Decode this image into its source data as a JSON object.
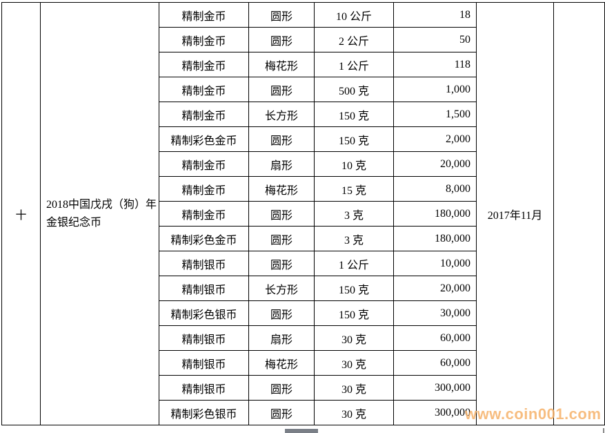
{
  "group": {
    "index": "十",
    "name": "2018中国戊戌（狗）年金银纪念币",
    "issue_date": "2017年11月",
    "rows": [
      {
        "type": "精制金币",
        "shape": "圆形",
        "weight": "10 公斤",
        "mintage": "18"
      },
      {
        "type": "精制金币",
        "shape": "圆形",
        "weight": "2 公斤",
        "mintage": "50"
      },
      {
        "type": "精制金币",
        "shape": "梅花形",
        "weight": "1 公斤",
        "mintage": "118"
      },
      {
        "type": "精制金币",
        "shape": "圆形",
        "weight": "500 克",
        "mintage": "1,000"
      },
      {
        "type": "精制金币",
        "shape": "长方形",
        "weight": "150 克",
        "mintage": "1,500"
      },
      {
        "type": "精制彩色金币",
        "shape": "圆形",
        "weight": "150 克",
        "mintage": "2,000"
      },
      {
        "type": "精制金币",
        "shape": "扇形",
        "weight": "10 克",
        "mintage": "20,000"
      },
      {
        "type": "精制金币",
        "shape": "梅花形",
        "weight": "15 克",
        "mintage": "8,000"
      },
      {
        "type": "精制金币",
        "shape": "圆形",
        "weight": "3 克",
        "mintage": "180,000"
      },
      {
        "type": "精制彩色金币",
        "shape": "圆形",
        "weight": "3 克",
        "mintage": "180,000"
      },
      {
        "type": "精制银币",
        "shape": "圆形",
        "weight": "1 公斤",
        "mintage": "10,000"
      },
      {
        "type": "精制银币",
        "shape": "长方形",
        "weight": "150 克",
        "mintage": "20,000"
      },
      {
        "type": "精制彩色银币",
        "shape": "圆形",
        "weight": "150 克",
        "mintage": "30,000"
      },
      {
        "type": "精制银币",
        "shape": "扇形",
        "weight": "30 克",
        "mintage": "60,000"
      },
      {
        "type": "精制银币",
        "shape": "梅花形",
        "weight": "30 克",
        "mintage": "60,000"
      },
      {
        "type": "精制银币",
        "shape": "圆形",
        "weight": "30 克",
        "mintage": "300,000"
      },
      {
        "type": "精制彩色银币",
        "shape": "圆形",
        "weight": "30 克",
        "mintage": "300,000"
      }
    ]
  },
  "watermark": "www.coin001.com"
}
